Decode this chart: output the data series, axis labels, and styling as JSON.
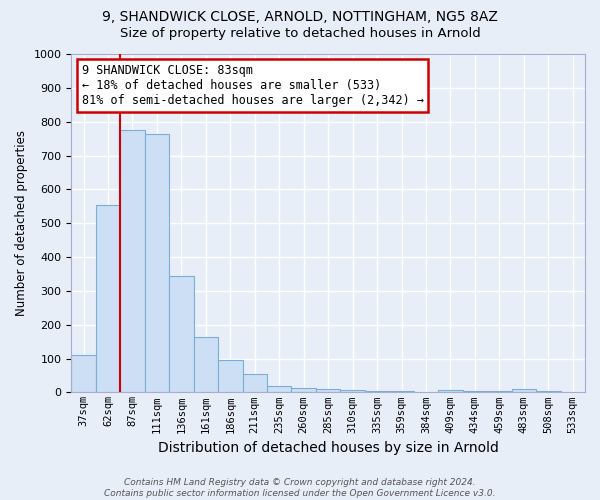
{
  "title": "9, SHANDWICK CLOSE, ARNOLD, NOTTINGHAM, NG5 8AZ",
  "subtitle": "Size of property relative to detached houses in Arnold",
  "xlabel": "Distribution of detached houses by size in Arnold",
  "ylabel": "Number of detached properties",
  "categories": [
    "37sqm",
    "62sqm",
    "87sqm",
    "111sqm",
    "136sqm",
    "161sqm",
    "186sqm",
    "211sqm",
    "235sqm",
    "260sqm",
    "285sqm",
    "310sqm",
    "335sqm",
    "359sqm",
    "384sqm",
    "409sqm",
    "434sqm",
    "459sqm",
    "483sqm",
    "508sqm",
    "533sqm"
  ],
  "values": [
    110,
    555,
    775,
    765,
    345,
    163,
    97,
    55,
    18,
    13,
    10,
    8,
    5,
    4,
    0,
    8,
    3,
    3,
    10,
    3,
    0
  ],
  "bar_color": "#ccdff5",
  "bar_edge_color": "#7aafd4",
  "red_line_x": 1.5,
  "annotation_text": "9 SHANDWICK CLOSE: 83sqm\n← 18% of detached houses are smaller (533)\n81% of semi-detached houses are larger (2,342) →",
  "annotation_box_color": "#ffffff",
  "annotation_border_color": "#cc0000",
  "ylim": [
    0,
    1000
  ],
  "yticks": [
    0,
    100,
    200,
    300,
    400,
    500,
    600,
    700,
    800,
    900,
    1000
  ],
  "footnote": "Contains HM Land Registry data © Crown copyright and database right 2024.\nContains public sector information licensed under the Open Government Licence v3.0.",
  "background_color": "#e8eef8",
  "grid_color": "#ffffff",
  "title_fontsize": 10,
  "subtitle_fontsize": 9.5,
  "xlabel_fontsize": 10,
  "ylabel_fontsize": 8.5,
  "annotation_fontsize": 8.5
}
